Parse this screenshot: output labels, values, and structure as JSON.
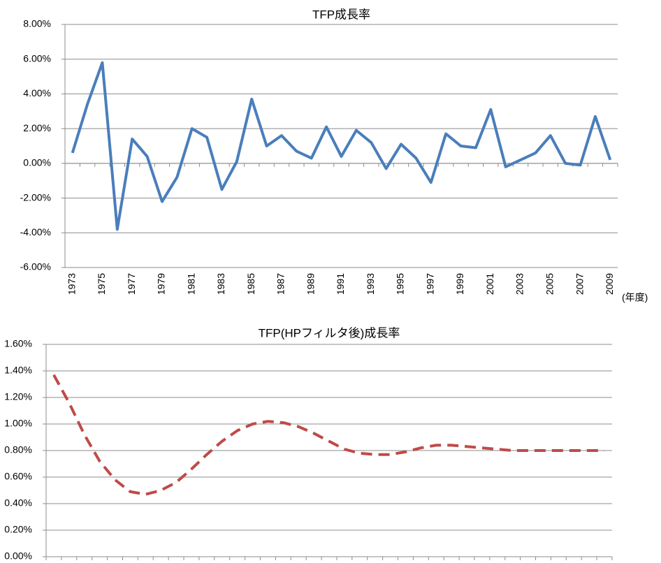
{
  "chart_data": [
    {
      "type": "line",
      "title": "TFP成長率",
      "x_label": "(年度)",
      "categories": [
        "1973",
        null,
        "1975",
        null,
        "1977",
        null,
        "1979",
        null,
        "1981",
        null,
        "1983",
        null,
        "1985",
        null,
        "1987",
        null,
        "1989",
        null,
        "1991",
        null,
        "1993",
        null,
        "1995",
        null,
        "1997",
        null,
        "1999",
        null,
        "2001",
        null,
        "2003",
        null,
        "2005",
        null,
        "2007",
        null,
        "2009"
      ],
      "series": [
        {
          "name": "TFP成長率",
          "color": "#4a7ebb",
          "line_style": "solid",
          "values": [
            0.6,
            3.4,
            5.8,
            -3.8,
            1.4,
            0.4,
            -2.2,
            -0.8,
            2.0,
            1.5,
            -1.5,
            0.1,
            3.7,
            1.0,
            1.6,
            0.7,
            0.3,
            2.1,
            0.4,
            1.9,
            1.2,
            -0.3,
            1.1,
            0.3,
            -1.1,
            1.7,
            1.0,
            0.9,
            3.1,
            -0.2,
            0.2,
            0.6,
            1.6,
            0.0,
            -0.1,
            2.7,
            0.2
          ]
        }
      ],
      "ylim": [
        -6,
        8
      ],
      "yticks": [
        {
          "value": -6,
          "label": "-6.00%"
        },
        {
          "value": -4,
          "label": "-4.00%"
        },
        {
          "value": -2,
          "label": "-2.00%"
        },
        {
          "value": 0,
          "label": "0.00%"
        },
        {
          "value": 2,
          "label": "2.00%"
        },
        {
          "value": 4,
          "label": "4.00%"
        },
        {
          "value": 6,
          "label": "6.00%"
        },
        {
          "value": 8,
          "label": "8.00%"
        }
      ],
      "grid": true
    },
    {
      "type": "line",
      "title": "TFP(HPフィルタ後)成長率",
      "categories": [
        null,
        null,
        null,
        null,
        null,
        null,
        null,
        null,
        null,
        null,
        null,
        null,
        null,
        null,
        null,
        null,
        null,
        null,
        null,
        null,
        null,
        null,
        null,
        null,
        null,
        null,
        null,
        null,
        null,
        null,
        null,
        null,
        null,
        null,
        null,
        null,
        null
      ],
      "series": [
        {
          "name": "TFP(HPフィルタ後)成長率",
          "color": "#be4b48",
          "line_style": "dashed",
          "values": [
            1.37,
            1.16,
            0.92,
            0.72,
            0.58,
            0.49,
            0.47,
            0.5,
            0.56,
            0.66,
            0.77,
            0.87,
            0.95,
            1.0,
            1.02,
            1.01,
            0.98,
            0.93,
            0.87,
            0.81,
            0.78,
            0.77,
            0.77,
            0.79,
            0.82,
            0.84,
            0.84,
            0.83,
            0.82,
            0.81,
            0.8,
            0.8,
            0.8,
            0.8,
            0.8,
            0.8,
            0.8
          ]
        }
      ],
      "ylim": [
        0,
        1.6
      ],
      "yticks": [
        {
          "value": 0,
          "label": "0.00%"
        },
        {
          "value": 0.2,
          "label": "0.20%"
        },
        {
          "value": 0.4,
          "label": "0.40%"
        },
        {
          "value": 0.6,
          "label": "0.60%"
        },
        {
          "value": 0.8,
          "label": "0.80%"
        },
        {
          "value": 1.0,
          "label": "1.00%"
        },
        {
          "value": 1.2,
          "label": "1.20%"
        },
        {
          "value": 1.4,
          "label": "1.40%"
        },
        {
          "value": 1.6,
          "label": "1.60%"
        }
      ],
      "grid": true
    }
  ]
}
